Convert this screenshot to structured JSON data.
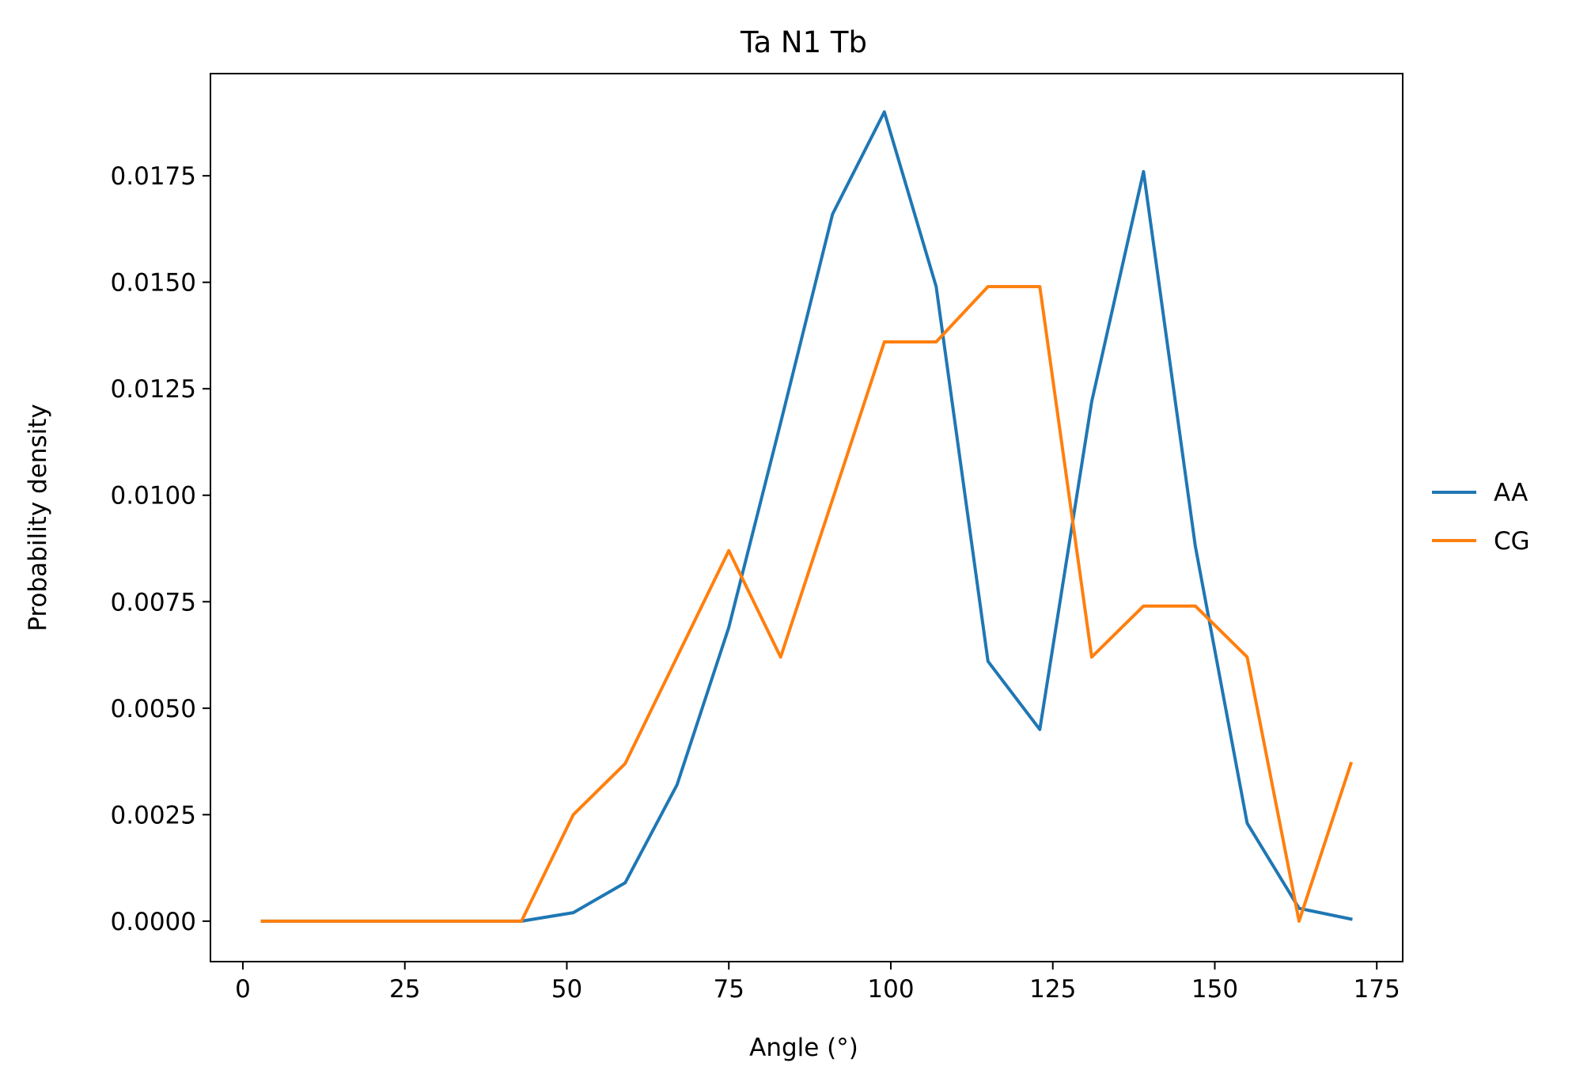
{
  "chart_data": {
    "type": "line",
    "title": "Ta N1 Tb",
    "xlabel": "Angle (°)",
    "ylabel": "Probability density",
    "xlim": [
      -5,
      179
    ],
    "ylim": [
      -0.00095,
      0.0199
    ],
    "xticks": [
      0,
      25,
      50,
      75,
      100,
      125,
      150,
      175
    ],
    "xtick_labels": [
      "0",
      "25",
      "50",
      "75",
      "100",
      "125",
      "150",
      "175"
    ],
    "yticks": [
      0,
      0.0025,
      0.005,
      0.0075,
      0.01,
      0.0125,
      0.015,
      0.0175
    ],
    "ytick_labels": [
      "0.0000",
      "0.0025",
      "0.0050",
      "0.0075",
      "0.0100",
      "0.0125",
      "0.0150",
      "0.0175"
    ],
    "grid": false,
    "legend_position": "center-right-outside",
    "x": [
      3,
      11,
      19,
      27,
      35,
      43,
      51,
      59,
      67,
      75,
      83,
      91,
      99,
      107,
      115,
      123,
      131,
      139,
      147,
      155,
      163,
      171
    ],
    "series": [
      {
        "name": "AA",
        "color": "#1f77b4",
        "values": [
          0,
          0,
          0,
          0,
          0,
          0,
          0.0002,
          0.0009,
          0.0032,
          0.0069,
          0.0117,
          0.0166,
          0.019,
          0.0149,
          0.0061,
          0.0045,
          0.0122,
          0.0176,
          0.0088,
          0.0023,
          0.0003,
          5e-05
        ]
      },
      {
        "name": "CG",
        "color": "#ff7f0e",
        "values": [
          0,
          0,
          0,
          0,
          0,
          0,
          0.0025,
          0.0037,
          0.0062,
          0.0087,
          0.0062,
          0.0099,
          0.0136,
          0.0136,
          0.0149,
          0.0149,
          0.0062,
          0.0074,
          0.0074,
          0.0062,
          0,
          0.0037
        ]
      }
    ]
  }
}
